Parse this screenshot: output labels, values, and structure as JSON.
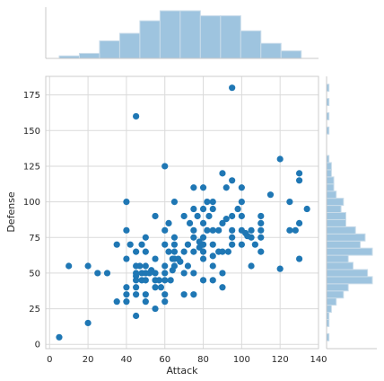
{
  "chart_data": {
    "type": "scatter",
    "title": "",
    "xlabel": "Attack",
    "ylabel": "Defense",
    "xlim": [
      -2,
      140
    ],
    "ylim": [
      -3,
      188
    ],
    "xticks": [
      0,
      20,
      40,
      60,
      80,
      100,
      120,
      140
    ],
    "yticks": [
      0,
      25,
      50,
      75,
      100,
      125,
      150,
      175
    ],
    "grid": true,
    "legend": "none",
    "colors": {
      "points": "#1f77b4",
      "hist_fill": "#9ec4df",
      "hist_edge": "#c9dcea",
      "grid": "#dadada"
    },
    "marginal_x_hist": {
      "bins": [
        5,
        15.5,
        26,
        36.5,
        47,
        57.5,
        68,
        78.5,
        89,
        99.5,
        110,
        120.5,
        131
      ],
      "counts": [
        1,
        2,
        7,
        10,
        15,
        19,
        19,
        17,
        17,
        11,
        6,
        3
      ]
    },
    "marginal_y_hist": {
      "bin_centers": [
        5,
        10,
        15,
        20,
        25,
        30,
        35,
        40,
        45,
        50,
        55,
        60,
        65,
        70,
        75,
        80,
        85,
        90,
        95,
        100,
        105,
        110,
        115,
        120,
        125,
        130,
        150,
        160,
        170,
        180
      ],
      "counts": [
        1,
        0,
        1,
        1,
        2,
        4,
        7,
        9,
        19,
        17,
        11,
        9,
        19,
        14,
        16,
        12,
        8,
        8,
        6,
        7,
        4,
        3,
        3,
        2,
        2,
        1,
        1,
        1,
        1,
        1
      ]
    },
    "points": [
      [
        5,
        5
      ],
      [
        10,
        55
      ],
      [
        20,
        15
      ],
      [
        20,
        55
      ],
      [
        25,
        50
      ],
      [
        30,
        50
      ],
      [
        35,
        30
      ],
      [
        35,
        70
      ],
      [
        40,
        100
      ],
      [
        40,
        80
      ],
      [
        40,
        60
      ],
      [
        40,
        40
      ],
      [
        40,
        35
      ],
      [
        40,
        30
      ],
      [
        42,
        70
      ],
      [
        45,
        160
      ],
      [
        45,
        65
      ],
      [
        45,
        55
      ],
      [
        45,
        50
      ],
      [
        45,
        48
      ],
      [
        45,
        45
      ],
      [
        45,
        40
      ],
      [
        45,
        35
      ],
      [
        45,
        20
      ],
      [
        47,
        55
      ],
      [
        48,
        70
      ],
      [
        48,
        50
      ],
      [
        48,
        45
      ],
      [
        50,
        75
      ],
      [
        50,
        65
      ],
      [
        50,
        55
      ],
      [
        50,
        50
      ],
      [
        50,
        45
      ],
      [
        50,
        35
      ],
      [
        50,
        30
      ],
      [
        52,
        50
      ],
      [
        53,
        52
      ],
      [
        55,
        90
      ],
      [
        55,
        60
      ],
      [
        55,
        50
      ],
      [
        55,
        45
      ],
      [
        55,
        40
      ],
      [
        55,
        25
      ],
      [
        57,
        45
      ],
      [
        58,
        40
      ],
      [
        60,
        125
      ],
      [
        60,
        80
      ],
      [
        60,
        70
      ],
      [
        60,
        55
      ],
      [
        60,
        50
      ],
      [
        60,
        45
      ],
      [
        60,
        35
      ],
      [
        60,
        30
      ],
      [
        62,
        85
      ],
      [
        62,
        65
      ],
      [
        63,
        45
      ],
      [
        64,
        60
      ],
      [
        64,
        52
      ],
      [
        65,
        100
      ],
      [
        65,
        75
      ],
      [
        65,
        70
      ],
      [
        65,
        65
      ],
      [
        65,
        60
      ],
      [
        65,
        55
      ],
      [
        67,
        60
      ],
      [
        68,
        58
      ],
      [
        70,
        90
      ],
      [
        70,
        65
      ],
      [
        70,
        50
      ],
      [
        70,
        35
      ],
      [
        72,
        55
      ],
      [
        72,
        70
      ],
      [
        73,
        85
      ],
      [
        75,
        110
      ],
      [
        75,
        95
      ],
      [
        75,
        80
      ],
      [
        75,
        75
      ],
      [
        75,
        65
      ],
      [
        75,
        50
      ],
      [
        75,
        35
      ],
      [
        77,
        90
      ],
      [
        78,
        72
      ],
      [
        78,
        68
      ],
      [
        80,
        110
      ],
      [
        80,
        95
      ],
      [
        80,
        85
      ],
      [
        80,
        75
      ],
      [
        80,
        70
      ],
      [
        80,
        65
      ],
      [
        80,
        60
      ],
      [
        80,
        45
      ],
      [
        82,
        100
      ],
      [
        82,
        80
      ],
      [
        83,
        90
      ],
      [
        85,
        100
      ],
      [
        85,
        95
      ],
      [
        85,
        80
      ],
      [
        85,
        70
      ],
      [
        85,
        62
      ],
      [
        85,
        55
      ],
      [
        85,
        45
      ],
      [
        88,
        80
      ],
      [
        88,
        65
      ],
      [
        90,
        120
      ],
      [
        90,
        85
      ],
      [
        90,
        65
      ],
      [
        90,
        50
      ],
      [
        90,
        40
      ],
      [
        92,
        110
      ],
      [
        92,
        88
      ],
      [
        93,
        65
      ],
      [
        95,
        180
      ],
      [
        95,
        115
      ],
      [
        95,
        90
      ],
      [
        95,
        80
      ],
      [
        95,
        75
      ],
      [
        95,
        70
      ],
      [
        98,
        95
      ],
      [
        100,
        110
      ],
      [
        100,
        100
      ],
      [
        100,
        90
      ],
      [
        100,
        80
      ],
      [
        100,
        70
      ],
      [
        102,
        78
      ],
      [
        103,
        76
      ],
      [
        105,
        80
      ],
      [
        105,
        75
      ],
      [
        105,
        55
      ],
      [
        107,
        70
      ],
      [
        110,
        90
      ],
      [
        110,
        85
      ],
      [
        110,
        80
      ],
      [
        110,
        75
      ],
      [
        110,
        65
      ],
      [
        115,
        105
      ],
      [
        120,
        130
      ],
      [
        120,
        53
      ],
      [
        125,
        100
      ],
      [
        125,
        80
      ],
      [
        128,
        80
      ],
      [
        130,
        120
      ],
      [
        130,
        115
      ],
      [
        130,
        85
      ],
      [
        130,
        60
      ],
      [
        134,
        95
      ]
    ]
  }
}
